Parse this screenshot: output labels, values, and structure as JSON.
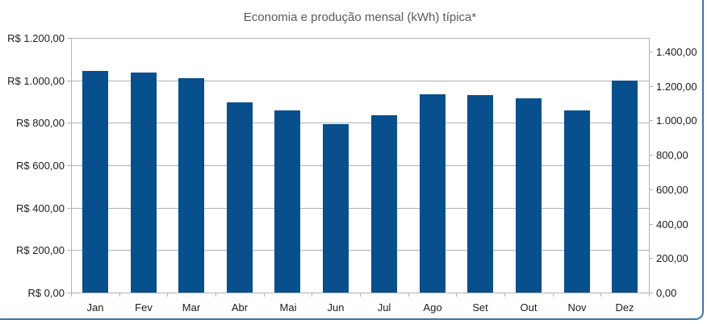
{
  "frame": {
    "border_color": "#3a74ab"
  },
  "chart_data": {
    "type": "bar",
    "title": "Economia e produção mensal (kWh) típica*",
    "categories": [
      "Jan",
      "Fev",
      "Mar",
      "Abr",
      "Mai",
      "Jun",
      "Jul",
      "Ago",
      "Set",
      "Out",
      "Nov",
      "Dez"
    ],
    "values": [
      1045,
      1035,
      1010,
      895,
      860,
      795,
      835,
      935,
      930,
      915,
      860,
      1000
    ],
    "bar_color": "#074f8d",
    "grid": true,
    "gridline_color": "#b3b3b3",
    "legend": "none",
    "left_axis": {
      "min": 0,
      "max": 1200,
      "step": 200,
      "labels": [
        "R$ 0,00",
        "R$ 200,00",
        "R$ 400,00",
        "R$ 600,00",
        "R$ 800,00",
        "R$ 1.000,00",
        "R$ 1.200,00"
      ]
    },
    "right_axis": {
      "min": 0,
      "max": 1400,
      "step": 200,
      "labels": [
        "0,00",
        "200,00",
        "400,00",
        "600,00",
        "800,00",
        "1.000,00",
        "1.200,00",
        "1.400,00"
      ]
    }
  }
}
